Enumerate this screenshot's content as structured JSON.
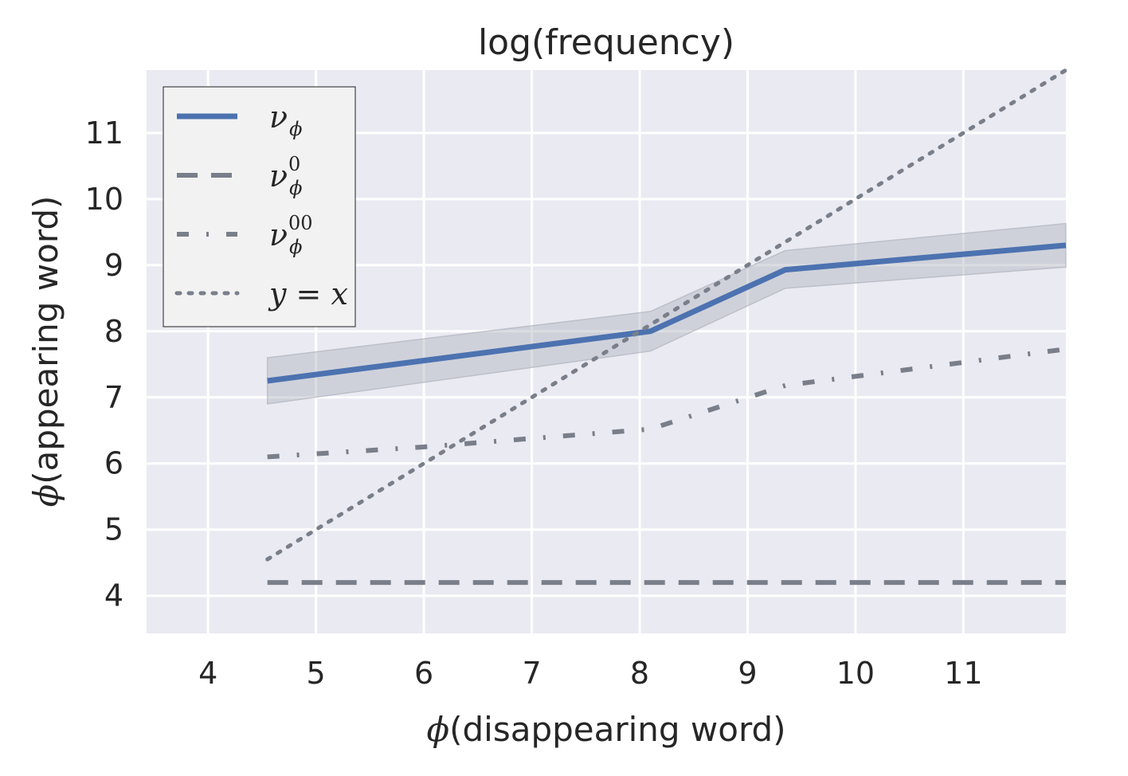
{
  "chart_data": {
    "type": "line",
    "title": "log(frequency)",
    "xlabel_symbol": "ϕ",
    "xlabel_text": "(disappearing word)",
    "ylabel_symbol": "ϕ",
    "ylabel_text": "(appearing word)",
    "xlim": [
      3.43,
      11.95
    ],
    "ylim": [
      3.43,
      11.95
    ],
    "xticks": [
      "4",
      "5",
      "6",
      "7",
      "8",
      "9",
      "10",
      "11"
    ],
    "yticks": [
      "4",
      "5",
      "6",
      "7",
      "8",
      "9",
      "10",
      "11"
    ],
    "grid": true,
    "legend_position": "top-left",
    "series": [
      {
        "name": "ν",
        "name_sub": "ϕ",
        "name_sup": "",
        "style": "solid",
        "color": "#4c72b0",
        "x": [
          4.55,
          8.1,
          9.35,
          11.95
        ],
        "y": [
          7.25,
          8.0,
          8.93,
          9.3
        ],
        "band_low": [
          6.9,
          7.7,
          8.65,
          8.97
        ],
        "band_high": [
          7.6,
          8.3,
          9.22,
          9.63
        ]
      },
      {
        "name": "ν",
        "name_sub": "ϕ",
        "name_sup": "0",
        "style": "dashed",
        "color": "#797f8a",
        "x": [
          4.55,
          11.95
        ],
        "y": [
          4.2,
          4.2
        ]
      },
      {
        "name": "ν",
        "name_sub": "ϕ",
        "name_sup": "00",
        "style": "dashdot",
        "color": "#797f8a",
        "x": [
          4.55,
          6.0,
          8.1,
          9.35,
          11.95
        ],
        "y": [
          6.1,
          6.25,
          6.52,
          7.18,
          7.73
        ]
      },
      {
        "name": "y = x",
        "name_sub": "",
        "name_sup": "",
        "style": "dotted",
        "color": "#797f8a",
        "x": [
          4.55,
          11.95
        ],
        "y": [
          4.55,
          11.95
        ]
      }
    ],
    "colors": {
      "background": "#eaeaf2",
      "grid": "#ffffff",
      "band": "#b0b3bd",
      "legend_bg": "#f2f2f2"
    }
  }
}
